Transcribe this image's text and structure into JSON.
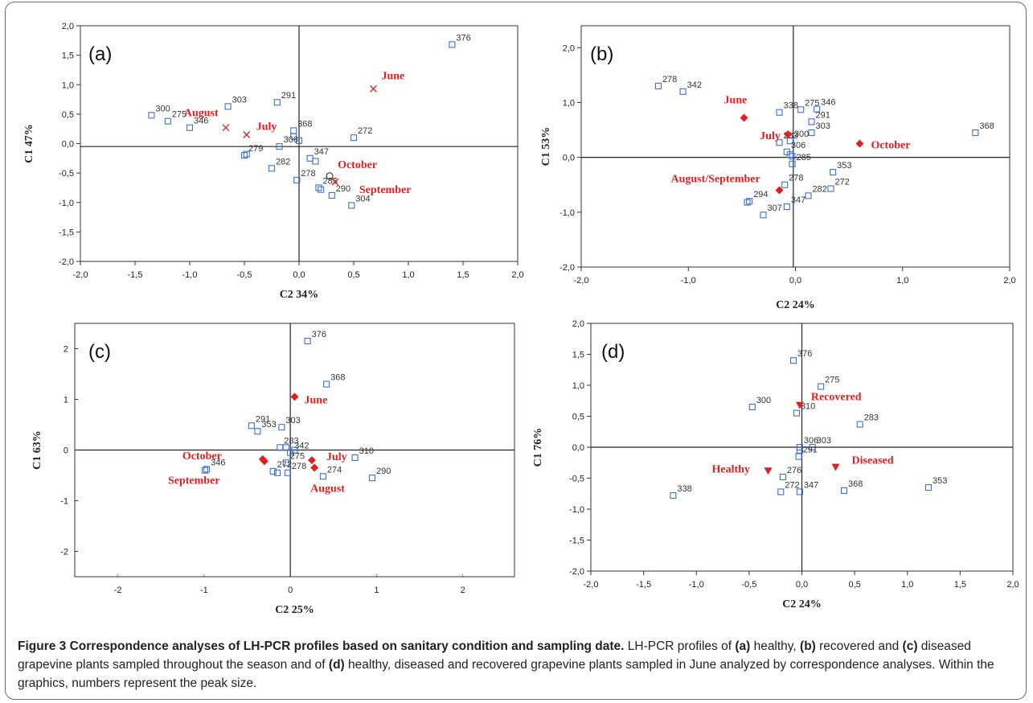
{
  "figure": {
    "caption_title": "Figure 3 Correspondence analyses of LH-PCR profiles based on sanitary condition and sampling date.",
    "caption_parts": [
      {
        "t": "LH-PCR profiles of ",
        "b": false
      },
      {
        "t": "(a)",
        "b": true
      },
      {
        "t": " healthy, ",
        "b": false
      },
      {
        "t": "(b)",
        "b": true
      },
      {
        "t": " recovered and ",
        "b": false
      },
      {
        "t": "(c)",
        "b": true
      },
      {
        "t": " diseased grapevine plants sampled throughout the season and of ",
        "b": false
      },
      {
        "t": "(d)",
        "b": true
      },
      {
        "t": " healthy, diseased and recovered grapevine plants sampled in June analyzed by correspondence analyses. Within the graphics, numbers represent the peak size.",
        "b": false
      }
    ]
  },
  "colors": {
    "points": "#3a6fd8",
    "groups": "#e02020",
    "axis": "#222222",
    "frame": "#6a6a6a"
  },
  "chart_data": [
    {
      "panel": "(a)",
      "type": "scatter",
      "xlabel": "C2 34%",
      "ylabel": "C1 47%",
      "xlim": [
        -2.0,
        2.0
      ],
      "ylim": [
        -2.0,
        2.0
      ],
      "xticks": [
        "-2,0",
        "-1,5",
        "-1,0",
        "-0,5",
        "0,0",
        "0,5",
        "1,0",
        "1,5",
        "2,0"
      ],
      "yticks": [
        "2,0",
        "1,5",
        "1,0",
        "0,5",
        "0,0",
        "-0,5",
        "-1,0",
        "-1,5",
        "-2,0"
      ],
      "xtickvals": [
        -2,
        -1.5,
        -1,
        -0.5,
        0,
        0.5,
        1,
        1.5,
        2
      ],
      "ytickvals": [
        2,
        1.5,
        1,
        0.5,
        0,
        -0.5,
        -1,
        -1.5,
        -2
      ],
      "origin": [
        0,
        -0.05
      ],
      "points": [
        {
          "label": "300",
          "x": -1.35,
          "y": 0.48
        },
        {
          "label": "275",
          "x": -1.2,
          "y": 0.38
        },
        {
          "label": "346",
          "x": -1.0,
          "y": 0.27
        },
        {
          "label": "303",
          "x": -0.65,
          "y": 0.63
        },
        {
          "label": "291",
          "x": -0.2,
          "y": 0.7
        },
        {
          "label": "368",
          "x": -0.05,
          "y": 0.22
        },
        {
          "label": "",
          "x": -0.05,
          "y": 0.12
        },
        {
          "label": "",
          "x": 0.0,
          "y": 0.05
        },
        {
          "label": "306",
          "x": -0.18,
          "y": -0.05
        },
        {
          "label": "272",
          "x": 0.5,
          "y": 0.1
        },
        {
          "label": "279",
          "x": -0.5,
          "y": -0.2
        },
        {
          "label": "",
          "x": -0.48,
          "y": -0.18
        },
        {
          "label": "282",
          "x": -0.25,
          "y": -0.42
        },
        {
          "label": "",
          "x": 0.15,
          "y": -0.3
        },
        {
          "label": "347",
          "x": 0.1,
          "y": -0.25
        },
        {
          "label": "278",
          "x": -0.02,
          "y": -0.62
        },
        {
          "label": "285",
          "x": 0.18,
          "y": -0.75
        },
        {
          "label": "",
          "x": 0.2,
          "y": -0.78
        },
        {
          "label": "290",
          "x": 0.3,
          "y": -0.88
        },
        {
          "label": "304",
          "x": 0.48,
          "y": -1.05
        },
        {
          "label": "376",
          "x": 1.4,
          "y": 1.68
        }
      ],
      "groups": [
        {
          "label": "June",
          "x": 0.68,
          "y": 0.93,
          "marker": "x"
        },
        {
          "label": "August",
          "x": -0.67,
          "y": 0.27,
          "marker": "x"
        },
        {
          "label": "July",
          "x": -0.48,
          "y": 0.15,
          "marker": "x"
        },
        {
          "label": "October",
          "x": 0.28,
          "y": -0.55,
          "marker": "o"
        },
        {
          "label": "September",
          "x": 0.33,
          "y": -0.65,
          "marker": "x"
        }
      ]
    },
    {
      "panel": "(b)",
      "type": "scatter",
      "xlabel": "C2 24%",
      "ylabel": "C1 53%",
      "xlim": [
        -2.0,
        2.0
      ],
      "ylim": [
        -2.0,
        2.4
      ],
      "xticks": [
        "-2,0",
        "-1,0",
        "0,0",
        "1,0",
        "2,0"
      ],
      "yticks": [
        "2,0",
        "1,0",
        "0,0",
        "-1,0",
        "-2,0"
      ],
      "xtickvals": [
        -2,
        -1,
        0,
        1,
        2
      ],
      "ytickvals": [
        2,
        1,
        0,
        -1,
        -2
      ],
      "origin": [
        -0.02,
        0
      ],
      "points": [
        {
          "label": "278",
          "x": -1.28,
          "y": 1.3
        },
        {
          "label": "342",
          "x": -1.05,
          "y": 1.2
        },
        {
          "label": "338",
          "x": -0.15,
          "y": 0.82
        },
        {
          "label": "275",
          "x": 0.05,
          "y": 0.87
        },
        {
          "label": "346",
          "x": 0.2,
          "y": 0.88
        },
        {
          "label": "291",
          "x": 0.15,
          "y": 0.65
        },
        {
          "label": "303",
          "x": 0.15,
          "y": 0.45
        },
        {
          "label": "300",
          "x": -0.05,
          "y": 0.3
        },
        {
          "label": "283",
          "x": -0.15,
          "y": 0.27
        },
        {
          "label": "306",
          "x": -0.08,
          "y": 0.1
        },
        {
          "label": "",
          "x": -0.05,
          "y": 0.05
        },
        {
          "label": "",
          "x": -0.03,
          "y": 0.02
        },
        {
          "label": "285",
          "x": -0.03,
          "y": -0.12
        },
        {
          "label": "353",
          "x": 0.35,
          "y": -0.27
        },
        {
          "label": "272",
          "x": 0.33,
          "y": -0.57
        },
        {
          "label": "278",
          "x": -0.1,
          "y": -0.5
        },
        {
          "label": "282",
          "x": 0.12,
          "y": -0.7
        },
        {
          "label": "294",
          "x": -0.43,
          "y": -0.8
        },
        {
          "label": "",
          "x": -0.45,
          "y": -0.82
        },
        {
          "label": "347",
          "x": -0.08,
          "y": -0.9
        },
        {
          "label": "307",
          "x": -0.3,
          "y": -1.05
        },
        {
          "label": "368",
          "x": 1.68,
          "y": 0.45
        }
      ],
      "groups": [
        {
          "label": "June",
          "x": -0.48,
          "y": 0.72,
          "marker": "diamond"
        },
        {
          "label": "July",
          "x": -0.07,
          "y": 0.42,
          "marker": "diamond"
        },
        {
          "label": "October",
          "x": 0.6,
          "y": 0.25,
          "marker": "diamond"
        },
        {
          "label": "August/September",
          "x": -0.15,
          "y": -0.6,
          "marker": "diamond"
        }
      ]
    },
    {
      "panel": "(c)",
      "type": "scatter",
      "xlabel": "C2 25%",
      "ylabel": "C1 63%",
      "xlim": [
        -2.5,
        2.6
      ],
      "ylim": [
        -2.5,
        2.5
      ],
      "xticks": [
        "-2",
        "-1",
        "0",
        "1",
        "2"
      ],
      "yticks": [
        "2",
        "1",
        "0",
        "-1",
        "-2"
      ],
      "xtickvals": [
        -2,
        -1,
        0,
        1,
        2
      ],
      "ytickvals": [
        2,
        1,
        0,
        -1,
        -2
      ],
      "origin": [
        0,
        0
      ],
      "points": [
        {
          "label": "376",
          "x": 0.2,
          "y": 2.15
        },
        {
          "label": "368",
          "x": 0.42,
          "y": 1.3
        },
        {
          "label": "291",
          "x": -0.45,
          "y": 0.48
        },
        {
          "label": "353",
          "x": -0.38,
          "y": 0.37
        },
        {
          "label": "303",
          "x": -0.1,
          "y": 0.45
        },
        {
          "label": "283",
          "x": -0.12,
          "y": 0.05
        },
        {
          "label": "",
          "x": -0.05,
          "y": 0.05
        },
        {
          "label": "342",
          "x": 0.0,
          "y": -0.05
        },
        {
          "label": "",
          "x": 0.05,
          "y": 0.0
        },
        {
          "label": "275",
          "x": -0.05,
          "y": -0.25
        },
        {
          "label": "278",
          "x": -0.03,
          "y": -0.45
        },
        {
          "label": "",
          "x": -0.15,
          "y": -0.45
        },
        {
          "label": "272",
          "x": -0.2,
          "y": -0.42
        },
        {
          "label": "346",
          "x": -0.97,
          "y": -0.38
        },
        {
          "label": "",
          "x": -0.99,
          "y": -0.4
        },
        {
          "label": "310",
          "x": 0.75,
          "y": -0.15
        },
        {
          "label": "274",
          "x": 0.38,
          "y": -0.52
        },
        {
          "label": "290",
          "x": 0.95,
          "y": -0.55
        }
      ],
      "groups": [
        {
          "label": "June",
          "x": 0.05,
          "y": 1.05,
          "marker": "diamond"
        },
        {
          "label": "October",
          "x": -0.32,
          "y": -0.18,
          "marker": "diamond"
        },
        {
          "label": "September",
          "x": -0.3,
          "y": -0.22,
          "marker": "diamond"
        },
        {
          "label": "July",
          "x": 0.25,
          "y": -0.2,
          "marker": "diamond"
        },
        {
          "label": "August",
          "x": 0.28,
          "y": -0.35,
          "marker": "diamond"
        }
      ]
    },
    {
      "panel": "(d)",
      "type": "scatter",
      "xlabel": "C2 24%",
      "ylabel": "C1 76%",
      "xlim": [
        -2.0,
        2.0
      ],
      "ylim": [
        -2.0,
        2.0
      ],
      "xticks": [
        "-2,0",
        "-1,5",
        "-1,0",
        "-0,5",
        "0,0",
        "0,5",
        "1,0",
        "1,5",
        "2,0"
      ],
      "yticks": [
        "2,0",
        "1,5",
        "1,0",
        "0,5",
        "0,0",
        "-0,5",
        "-1,0",
        "-1,5",
        "-2,0"
      ],
      "xtickvals": [
        -2,
        -1.5,
        -1,
        -0.5,
        0,
        0.5,
        1,
        1.5,
        2
      ],
      "ytickvals": [
        2,
        1.5,
        1,
        0.5,
        0,
        -0.5,
        -1,
        -1.5,
        -2
      ],
      "origin": [
        0,
        0
      ],
      "points": [
        {
          "label": "376",
          "x": -0.08,
          "y": 1.4
        },
        {
          "label": "275",
          "x": 0.18,
          "y": 0.98
        },
        {
          "label": "300",
          "x": -0.47,
          "y": 0.65
        },
        {
          "label": "310",
          "x": -0.05,
          "y": 0.55
        },
        {
          "label": "283",
          "x": 0.55,
          "y": 0.37
        },
        {
          "label": "306",
          "x": -0.02,
          "y": 0.0
        },
        {
          "label": "303",
          "x": 0.1,
          "y": 0.0
        },
        {
          "label": "",
          "x": -0.02,
          "y": -0.05
        },
        {
          "label": "291",
          "x": -0.03,
          "y": -0.15
        },
        {
          "label": "276",
          "x": -0.18,
          "y": -0.48
        },
        {
          "label": "272",
          "x": -0.2,
          "y": -0.72
        },
        {
          "label": "347",
          "x": -0.02,
          "y": -0.72
        },
        {
          "label": "368",
          "x": 0.4,
          "y": -0.7
        },
        {
          "label": "353",
          "x": 1.2,
          "y": -0.65
        },
        {
          "label": "338",
          "x": -1.22,
          "y": -0.78
        }
      ],
      "groups": [
        {
          "label": "Recovered",
          "x": -0.02,
          "y": 0.68,
          "marker": "triangle"
        },
        {
          "label": "Healthy",
          "x": -0.32,
          "y": -0.38,
          "marker": "triangle"
        },
        {
          "label": "Diseased",
          "x": 0.32,
          "y": -0.32,
          "marker": "triangle"
        }
      ]
    }
  ]
}
